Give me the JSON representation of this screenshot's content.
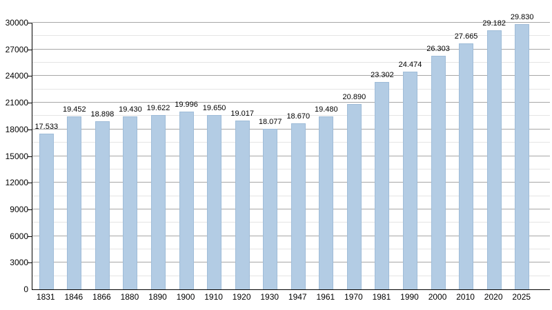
{
  "chart_data": {
    "type": "bar",
    "title": "",
    "xlabel": "",
    "ylabel": "",
    "categories": [
      "1831",
      "1846",
      "1866",
      "1880",
      "1890",
      "1900",
      "1910",
      "1920",
      "1930",
      "1947",
      "1961",
      "1970",
      "1981",
      "1990",
      "2000",
      "2010",
      "2020",
      "2025"
    ],
    "values": [
      17533,
      19452,
      18898,
      19430,
      19622,
      19996,
      19650,
      19017,
      18077,
      18670,
      19480,
      20890,
      23302,
      24474,
      26303,
      27665,
      29182,
      29830
    ],
    "value_labels": [
      "17.533",
      "19.452",
      "18.898",
      "19.430",
      "19.622",
      "19.996",
      "19.650",
      "19.017",
      "18.077",
      "18.670",
      "19.480",
      "20.890",
      "23.302",
      "24.474",
      "26.303",
      "27.665",
      "29.182",
      "29.830"
    ],
    "ylim": [
      0,
      30000
    ],
    "ytick_major_step": 3000,
    "ytick_minor_step": 1500,
    "ytick_labels": [
      "0",
      "3000",
      "6000",
      "9000",
      "12000",
      "15000",
      "18000",
      "21000",
      "24000",
      "27000",
      "30000"
    ],
    "grid": true,
    "legend": false,
    "colors": {
      "bar_fill": "#b3cce4",
      "bar_border": "#9fbcd8",
      "grid_major": "#a6a6a6",
      "grid_minor": "#e4e4e4",
      "axis": "#000000",
      "text": "#000000",
      "background": "#ffffff"
    }
  }
}
